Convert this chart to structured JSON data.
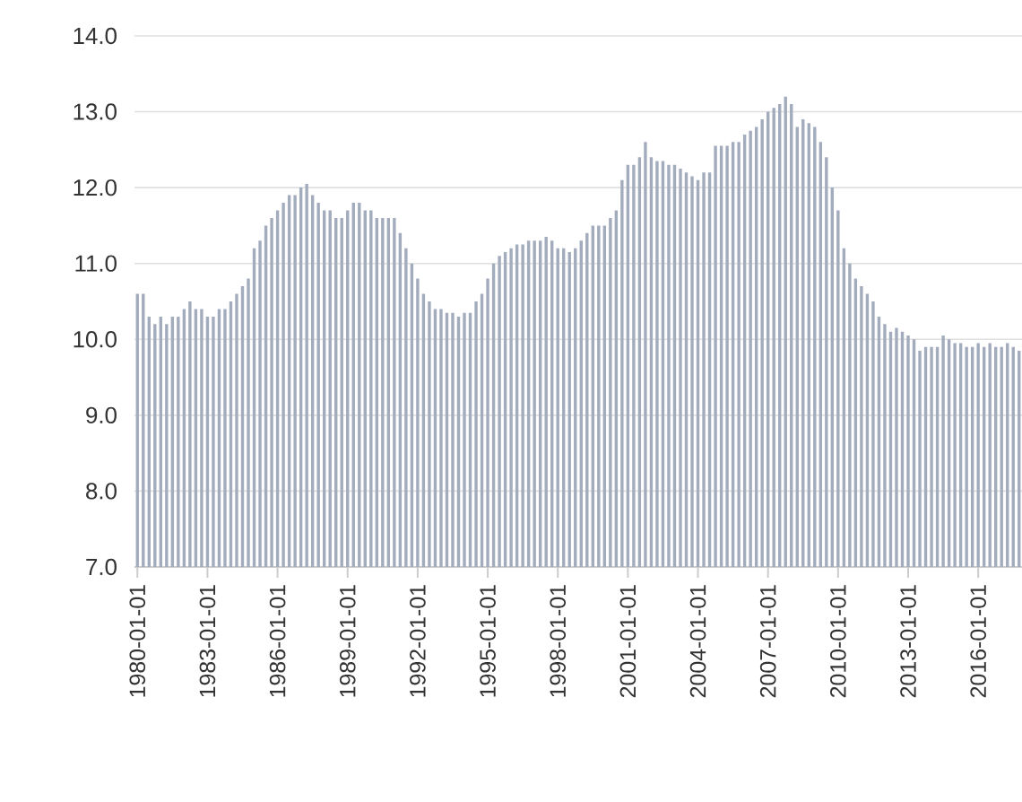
{
  "chart_data": {
    "type": "bar",
    "color": "#a3acbd",
    "grid": "y",
    "ylim": [
      7,
      14
    ],
    "yticks": [
      {
        "value": 7,
        "label": "7.0"
      },
      {
        "value": 8,
        "label": "8.0"
      },
      {
        "value": 9,
        "label": "9.0"
      },
      {
        "value": 10,
        "label": "10.0"
      },
      {
        "value": 11,
        "label": "11.0"
      },
      {
        "value": 12,
        "label": "12.0"
      },
      {
        "value": 13,
        "label": "13.0"
      },
      {
        "value": 14,
        "label": "14.0"
      }
    ],
    "categories": [
      "1980-01-01",
      null,
      null,
      null,
      null,
      null,
      null,
      null,
      null,
      null,
      null,
      null,
      "1983-01-01",
      null,
      null,
      null,
      null,
      null,
      null,
      null,
      null,
      null,
      null,
      null,
      "1986-01-01",
      null,
      null,
      null,
      null,
      null,
      null,
      null,
      null,
      null,
      null,
      null,
      "1989-01-01",
      null,
      null,
      null,
      null,
      null,
      null,
      null,
      null,
      null,
      null,
      null,
      "1992-01-01",
      null,
      null,
      null,
      null,
      null,
      null,
      null,
      null,
      null,
      null,
      null,
      "1995-01-01",
      null,
      null,
      null,
      null,
      null,
      null,
      null,
      null,
      null,
      null,
      null,
      "1998-01-01",
      null,
      null,
      null,
      null,
      null,
      null,
      null,
      null,
      null,
      null,
      null,
      "2001-01-01",
      null,
      null,
      null,
      null,
      null,
      null,
      null,
      null,
      null,
      null,
      null,
      "2004-01-01",
      null,
      null,
      null,
      null,
      null,
      null,
      null,
      null,
      null,
      null,
      null,
      "2007-01-01",
      null,
      null,
      null,
      null,
      null,
      null,
      null,
      null,
      null,
      null,
      null,
      "2010-01-01",
      null,
      null,
      null,
      null,
      null,
      null,
      null,
      null,
      null,
      null,
      null,
      "2013-01-01",
      null,
      null,
      null,
      null,
      null,
      null,
      null,
      null,
      null,
      null,
      null,
      "2016-01-01",
      null,
      null,
      null,
      null,
      null,
      null,
      null
    ],
    "values": [
      10.6,
      10.6,
      10.3,
      10.2,
      10.3,
      10.2,
      10.3,
      10.3,
      10.4,
      10.5,
      10.4,
      10.4,
      10.3,
      10.3,
      10.4,
      10.4,
      10.5,
      10.6,
      10.7,
      10.8,
      11.2,
      11.3,
      11.5,
      11.6,
      11.7,
      11.8,
      11.9,
      11.9,
      12.0,
      12.05,
      11.9,
      11.8,
      11.7,
      11.7,
      11.6,
      11.6,
      11.7,
      11.8,
      11.8,
      11.7,
      11.7,
      11.6,
      11.6,
      11.6,
      11.6,
      11.4,
      11.2,
      11.0,
      10.8,
      10.6,
      10.5,
      10.4,
      10.4,
      10.35,
      10.35,
      10.3,
      10.35,
      10.35,
      10.5,
      10.6,
      10.8,
      11.0,
      11.1,
      11.15,
      11.2,
      11.25,
      11.25,
      11.3,
      11.3,
      11.3,
      11.35,
      11.3,
      11.2,
      11.2,
      11.15,
      11.2,
      11.3,
      11.4,
      11.5,
      11.5,
      11.5,
      11.6,
      11.7,
      12.1,
      12.3,
      12.3,
      12.4,
      12.6,
      12.4,
      12.35,
      12.35,
      12.3,
      12.3,
      12.25,
      12.2,
      12.15,
      12.1,
      12.2,
      12.2,
      12.55,
      12.55,
      12.55,
      12.6,
      12.6,
      12.7,
      12.75,
      12.8,
      12.9,
      13.0,
      13.05,
      13.1,
      13.2,
      13.1,
      12.8,
      12.9,
      12.85,
      12.8,
      12.6,
      12.4,
      12.0,
      11.7,
      11.2,
      11.0,
      10.8,
      10.7,
      10.6,
      10.5,
      10.3,
      10.2,
      10.1,
      10.15,
      10.1,
      10.05,
      10.0,
      9.85,
      9.9,
      9.9,
      9.9,
      10.05,
      10.0,
      9.95,
      9.95,
      9.9,
      9.9,
      9.95,
      9.9,
      9.95,
      9.9,
      9.9,
      9.95,
      9.9,
      9.85
    ]
  }
}
